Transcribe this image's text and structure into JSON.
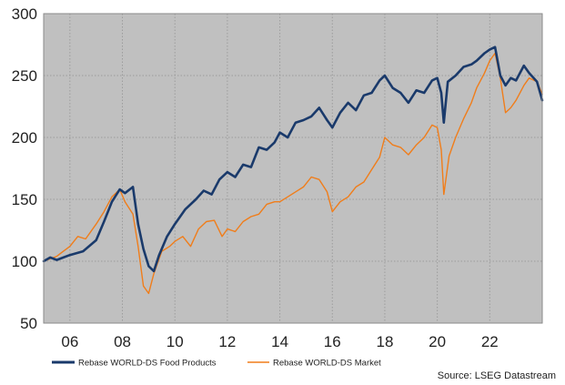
{
  "chart_data": {
    "type": "line",
    "xlim": [
      2005.0,
      2024.0
    ],
    "ylim": [
      50,
      300
    ],
    "yticks": [
      "50",
      "100",
      "150",
      "200",
      "250",
      "300"
    ],
    "xticks": [
      {
        "value": 2006,
        "label": "06"
      },
      {
        "value": 2008,
        "label": "08"
      },
      {
        "value": 2010,
        "label": "10"
      },
      {
        "value": 2012,
        "label": "12"
      },
      {
        "value": 2014,
        "label": "14"
      },
      {
        "value": 2016,
        "label": "16"
      },
      {
        "value": 2018,
        "label": "18"
      },
      {
        "value": 2020,
        "label": "20"
      },
      {
        "value": 2022,
        "label": "22"
      }
    ],
    "grid": true,
    "legend_position": "bottom",
    "background": "#c0c0c0",
    "series": [
      {
        "name": "Rebase WORLD-DS Food Products",
        "color": "#1a3a6b",
        "x": [
          2005.0,
          2005.25,
          2005.5,
          2005.75,
          2006.0,
          2006.5,
          2007.0,
          2007.3,
          2007.6,
          2007.9,
          2008.1,
          2008.4,
          2008.6,
          2008.8,
          2009.0,
          2009.2,
          2009.4,
          2009.7,
          2010.0,
          2010.4,
          2010.8,
          2011.1,
          2011.4,
          2011.7,
          2012.0,
          2012.3,
          2012.6,
          2012.9,
          2013.2,
          2013.5,
          2013.8,
          2014.0,
          2014.3,
          2014.6,
          2014.9,
          2015.2,
          2015.5,
          2015.8,
          2016.0,
          2016.3,
          2016.6,
          2016.9,
          2017.2,
          2017.5,
          2017.8,
          2018.0,
          2018.3,
          2018.6,
          2018.9,
          2019.2,
          2019.5,
          2019.8,
          2020.0,
          2020.15,
          2020.25,
          2020.4,
          2020.7,
          2021.0,
          2021.3,
          2021.5,
          2021.8,
          2022.0,
          2022.2,
          2022.4,
          2022.6,
          2022.8,
          2023.0,
          2023.3,
          2023.5,
          2023.8,
          2024.0
        ],
        "y": [
          100,
          103,
          101,
          103,
          105,
          108,
          117,
          132,
          148,
          158,
          155,
          160,
          130,
          110,
          96,
          92,
          105,
          120,
          130,
          142,
          150,
          157,
          154,
          166,
          172,
          168,
          178,
          176,
          192,
          190,
          196,
          204,
          200,
          212,
          214,
          217,
          224,
          214,
          208,
          220,
          228,
          222,
          234,
          236,
          246,
          250,
          240,
          236,
          228,
          238,
          236,
          246,
          248,
          236,
          212,
          245,
          250,
          257,
          259,
          262,
          268,
          271,
          273,
          250,
          242,
          248,
          246,
          258,
          252,
          245,
          230
        ]
      },
      {
        "name": "Rebase WORLD-DS Market",
        "color": "#f07d1a",
        "x": [
          2005.0,
          2005.25,
          2005.5,
          2005.75,
          2006.0,
          2006.3,
          2006.6,
          2007.0,
          2007.3,
          2007.6,
          2007.9,
          2008.1,
          2008.4,
          2008.6,
          2008.8,
          2009.0,
          2009.2,
          2009.5,
          2009.8,
          2010.0,
          2010.3,
          2010.6,
          2010.9,
          2011.2,
          2011.5,
          2011.8,
          2012.0,
          2012.3,
          2012.6,
          2012.9,
          2013.2,
          2013.5,
          2013.8,
          2014.0,
          2014.3,
          2014.6,
          2014.9,
          2015.2,
          2015.5,
          2015.8,
          2016.0,
          2016.3,
          2016.6,
          2016.9,
          2017.2,
          2017.5,
          2017.8,
          2018.0,
          2018.3,
          2018.6,
          2018.9,
          2019.2,
          2019.5,
          2019.8,
          2020.0,
          2020.15,
          2020.25,
          2020.45,
          2020.7,
          2021.0,
          2021.3,
          2021.5,
          2021.8,
          2022.0,
          2022.2,
          2022.4,
          2022.6,
          2022.8,
          2023.0,
          2023.3,
          2023.5,
          2023.8,
          2024.0
        ],
        "y": [
          100,
          102,
          104,
          108,
          112,
          120,
          118,
          130,
          140,
          152,
          158,
          148,
          138,
          112,
          80,
          74,
          90,
          108,
          112,
          116,
          120,
          112,
          126,
          132,
          133,
          120,
          126,
          124,
          132,
          136,
          138,
          146,
          148,
          148,
          152,
          156,
          160,
          168,
          166,
          156,
          140,
          148,
          152,
          160,
          164,
          174,
          184,
          200,
          194,
          192,
          186,
          194,
          200,
          210,
          208,
          190,
          154,
          185,
          200,
          215,
          228,
          240,
          252,
          262,
          268,
          248,
          220,
          224,
          230,
          242,
          248,
          245,
          235
        ]
      }
    ],
    "source": "Source: LSEG Datastream"
  }
}
